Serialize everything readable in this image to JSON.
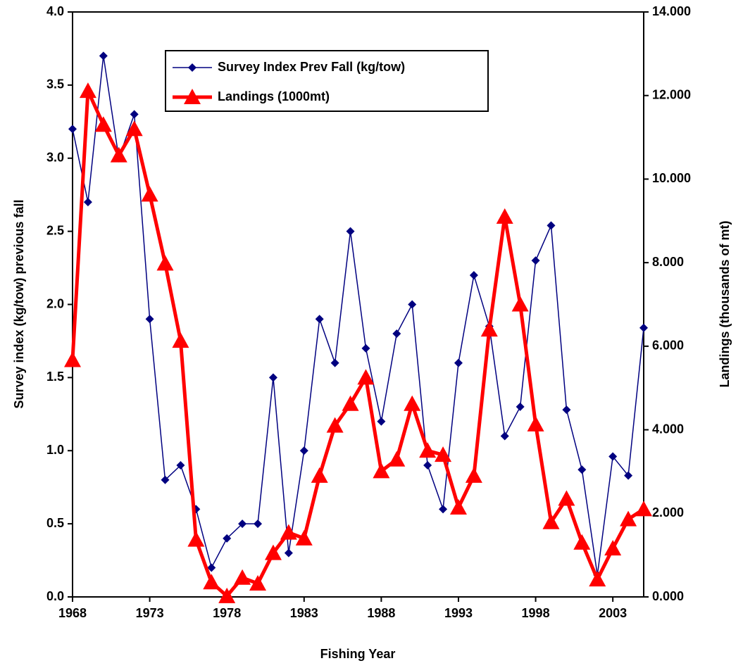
{
  "chart_data": {
    "type": "line",
    "x_label": "Fishing Year",
    "y_label": "Survey index (kg/tow) previous fall",
    "y2_label": "Landings (thousands of mt)",
    "x": [
      1968,
      1969,
      1970,
      1971,
      1972,
      1973,
      1974,
      1975,
      1976,
      1977,
      1978,
      1979,
      1980,
      1981,
      1982,
      1983,
      1984,
      1985,
      1986,
      1987,
      1988,
      1989,
      1990,
      1991,
      1992,
      1993,
      1994,
      1995,
      1996,
      1997,
      1998,
      1999,
      2000,
      2001,
      2002,
      2003,
      2004,
      2005
    ],
    "xlim": [
      1968,
      2005
    ],
    "xticks": [
      1968,
      1973,
      1978,
      1983,
      1988,
      1993,
      1998,
      2003
    ],
    "ylim": [
      0,
      4
    ],
    "yticks": [
      {
        "value": 0,
        "label": "0.0"
      },
      0.5,
      {
        "value": 1,
        "label": "1.0"
      },
      1.5,
      {
        "value": 2,
        "label": "2.0"
      },
      2.5,
      {
        "value": 3,
        "label": "3.0"
      },
      3.5,
      {
        "value": 4,
        "label": "4.0"
      }
    ],
    "y2lim": [
      0,
      14
    ],
    "y2ticks": [
      {
        "value": 0,
        "label": "0.000"
      },
      {
        "value": 2,
        "label": "2.000"
      },
      {
        "value": 4,
        "label": "4.000"
      },
      {
        "value": 6,
        "label": "6.000"
      },
      {
        "value": 8,
        "label": "8.000"
      },
      {
        "value": 10,
        "label": "10.000"
      },
      {
        "value": 12,
        "label": "12.000"
      },
      {
        "value": 14,
        "label": "14.000"
      }
    ],
    "legend": "upper-left",
    "series": [
      {
        "name": "Survey Index Prev Fall (kg/tow)",
        "color": "#000080",
        "marker": "diamond",
        "axis": "y",
        "values": [
          3.2,
          2.7,
          3.7,
          3.0,
          3.3,
          1.9,
          0.8,
          0.9,
          0.6,
          0.2,
          0.4,
          0.5,
          0.5,
          1.5,
          0.3,
          1.0,
          1.9,
          1.6,
          2.5,
          1.7,
          1.2,
          1.8,
          2.0,
          0.9,
          0.6,
          1.6,
          2.2,
          1.85,
          1.1,
          1.3,
          2.3,
          2.54,
          1.28,
          0.87,
          0.15,
          0.96,
          0.83,
          1.84
        ]
      },
      {
        "name": "Landings (1000mt)",
        "color": "#ff0000",
        "marker": "triangle",
        "axis": "y2",
        "values": [
          5.67,
          12.11,
          11.3,
          10.57,
          11.2,
          9.63,
          7.98,
          6.13,
          1.37,
          0.35,
          0.02,
          0.46,
          0.32,
          1.05,
          1.54,
          1.4,
          2.9,
          4.1,
          4.62,
          5.25,
          3.01,
          3.29,
          4.62,
          3.5,
          3.4,
          2.14,
          2.9,
          6.4,
          9.1,
          7.0,
          4.13,
          1.79,
          2.35,
          1.3,
          0.42,
          1.16,
          1.86,
          2.1
        ]
      }
    ]
  }
}
